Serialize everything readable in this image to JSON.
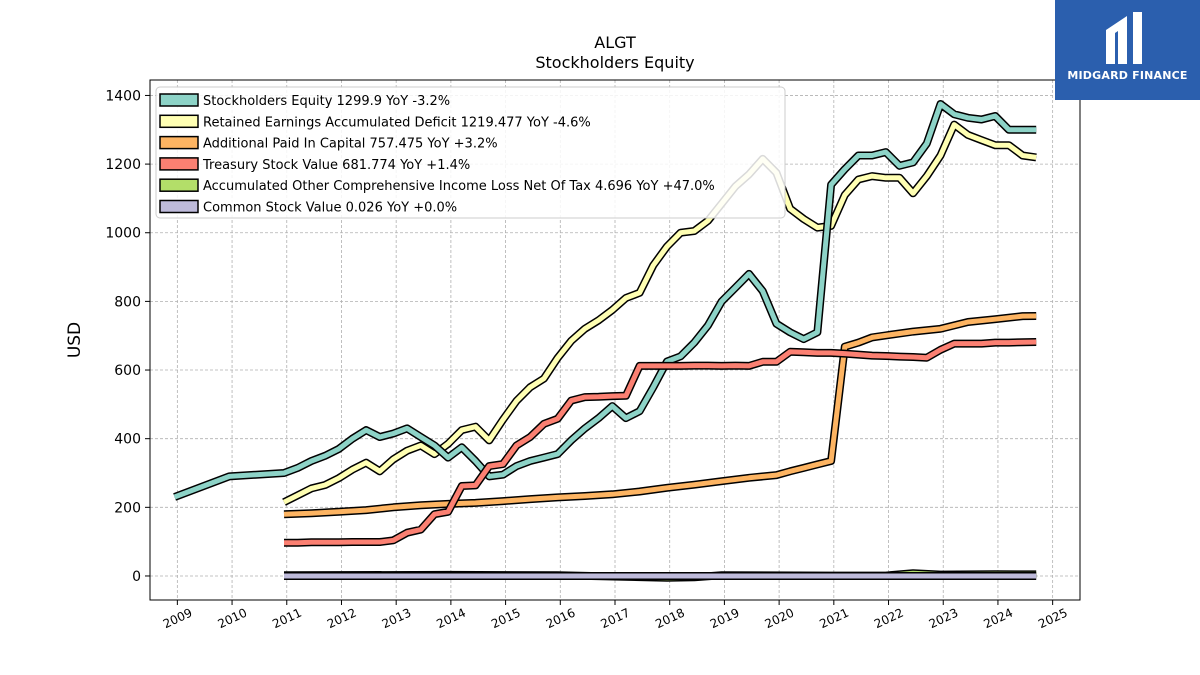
{
  "chart_data": {
    "type": "line",
    "title": "ALGT",
    "subtitle": "Stockholders  Equity",
    "ylabel": "USD",
    "xlabel": "",
    "xlim": [
      2008.5,
      2025.5
    ],
    "ylim": [
      -70,
      1445
    ],
    "x_ticks": [
      "2009",
      "2010",
      "2011",
      "2012",
      "2013",
      "2014",
      "2015",
      "2016",
      "2017",
      "2018",
      "2019",
      "2020",
      "2021",
      "2022",
      "2023",
      "2024",
      "2025"
    ],
    "y_ticks": [
      0,
      200,
      400,
      600,
      800,
      1000,
      1200,
      1400
    ],
    "grid": true,
    "legend_position": "top-left",
    "series": [
      {
        "name": "Stockholders Equity  1299.9 YoY -3.2%",
        "color": "#8dd3c7",
        "x": [
          2008.95,
          2009.95,
          2010.95,
          2011.2,
          2011.45,
          2011.7,
          2011.95,
          2012.2,
          2012.45,
          2012.7,
          2012.95,
          2013.2,
          2013.45,
          2013.7,
          2013.95,
          2014.2,
          2014.45,
          2014.7,
          2014.95,
          2015.2,
          2015.45,
          2015.7,
          2015.95,
          2016.2,
          2016.45,
          2016.7,
          2016.95,
          2017.2,
          2017.45,
          2017.7,
          2017.95,
          2018.2,
          2018.45,
          2018.7,
          2018.95,
          2019.2,
          2019.45,
          2019.7,
          2019.95,
          2020.2,
          2020.45,
          2020.7,
          2020.95,
          2021.2,
          2021.45,
          2021.7,
          2021.95,
          2022.2,
          2022.45,
          2022.7,
          2022.95,
          2023.2,
          2023.45,
          2023.7,
          2023.95,
          2024.2,
          2024.45,
          2024.7
        ],
        "values": [
          230,
          290,
          300,
          315,
          335,
          350,
          370,
          400,
          425,
          405,
          415,
          430,
          405,
          380,
          345,
          375,
          335,
          290,
          295,
          320,
          335,
          345,
          355,
          395,
          430,
          460,
          495,
          460,
          480,
          550,
          625,
          640,
          680,
          730,
          800,
          840,
          880,
          830,
          735,
          710,
          690,
          710,
          1140,
          1185,
          1225,
          1225,
          1235,
          1195,
          1205,
          1260,
          1375,
          1345,
          1335,
          1330,
          1340,
          1300,
          1299.9,
          1299.9
        ]
      },
      {
        "name": "Retained Earnings Accumulated Deficit  1219.477 YoY -4.6%",
        "color": "#ffffb3",
        "x": [
          2010.95,
          2011.2,
          2011.45,
          2011.7,
          2011.95,
          2012.2,
          2012.45,
          2012.7,
          2012.95,
          2013.2,
          2013.45,
          2013.7,
          2013.95,
          2014.2,
          2014.45,
          2014.7,
          2014.95,
          2015.2,
          2015.45,
          2015.7,
          2015.95,
          2016.2,
          2016.45,
          2016.7,
          2016.95,
          2017.2,
          2017.45,
          2017.7,
          2017.95,
          2018.2,
          2018.45,
          2018.7,
          2018.95,
          2019.2,
          2019.45,
          2019.7,
          2019.95,
          2020.2,
          2020.45,
          2020.7,
          2020.95,
          2021.2,
          2021.45,
          2021.7,
          2021.95,
          2022.2,
          2022.45,
          2022.7,
          2022.95,
          2023.2,
          2023.45,
          2023.7,
          2023.95,
          2024.2,
          2024.45,
          2024.7
        ],
        "values": [
          215,
          235,
          255,
          265,
          285,
          310,
          330,
          305,
          340,
          365,
          380,
          355,
          385,
          425,
          435,
          395,
          455,
          510,
          550,
          575,
          635,
          685,
          720,
          745,
          775,
          810,
          825,
          905,
          960,
          1000,
          1005,
          1035,
          1085,
          1135,
          1170,
          1215,
          1175,
          1070,
          1040,
          1015,
          1020,
          1110,
          1155,
          1165,
          1160,
          1160,
          1115,
          1165,
          1225,
          1315,
          1285,
          1270,
          1255,
          1255,
          1225,
          1219.477
        ]
      },
      {
        "name": "Additional Paid In Capital  757.475 YoY +3.2%",
        "color": "#fdb462",
        "x": [
          2010.95,
          2011.45,
          2011.95,
          2012.45,
          2012.95,
          2013.45,
          2013.95,
          2014.45,
          2014.95,
          2015.45,
          2015.95,
          2016.45,
          2016.95,
          2017.45,
          2017.95,
          2018.45,
          2018.95,
          2019.45,
          2019.95,
          2020.2,
          2020.45,
          2020.7,
          2020.95,
          2021.2,
          2021.45,
          2021.7,
          2021.95,
          2022.45,
          2022.95,
          2023.2,
          2023.45,
          2023.95,
          2024.45,
          2024.7
        ],
        "values": [
          180,
          183,
          187,
          192,
          200,
          206,
          210,
          213,
          218,
          224,
          229,
          233,
          238,
          246,
          257,
          266,
          276,
          286,
          294,
          305,
          315,
          325,
          335,
          668,
          680,
          695,
          701,
          712,
          720,
          730,
          740,
          748,
          757,
          757.475
        ]
      },
      {
        "name": "Treasury Stock Value  681.774 YoY +1.4%",
        "color": "#fb8072",
        "x": [
          2010.95,
          2011.2,
          2011.45,
          2011.7,
          2011.95,
          2012.2,
          2012.45,
          2012.7,
          2012.95,
          2013.2,
          2013.45,
          2013.7,
          2013.95,
          2014.2,
          2014.45,
          2014.7,
          2014.95,
          2015.2,
          2015.45,
          2015.7,
          2015.95,
          2016.2,
          2016.45,
          2016.7,
          2016.95,
          2017.2,
          2017.45,
          2017.7,
          2017.95,
          2018.2,
          2018.45,
          2018.7,
          2018.95,
          2019.2,
          2019.45,
          2019.7,
          2019.95,
          2020.2,
          2020.45,
          2020.7,
          2020.95,
          2021.2,
          2021.45,
          2021.7,
          2021.95,
          2022.2,
          2022.45,
          2022.7,
          2022.95,
          2023.2,
          2023.45,
          2023.7,
          2023.95,
          2024.2,
          2024.45,
          2024.7
        ],
        "values": [
          97,
          97,
          98,
          98,
          98,
          99,
          99,
          99,
          104,
          126,
          135,
          180,
          187,
          262,
          264,
          320,
          326,
          380,
          405,
          443,
          458,
          511,
          521,
          522,
          524,
          525,
          612,
          612,
          612,
          612,
          613,
          613,
          612,
          613,
          612,
          624,
          624,
          653,
          652,
          650,
          650,
          648,
          645,
          642,
          641,
          639,
          638,
          636,
          659,
          677,
          677,
          677,
          680,
          680,
          681,
          681.774
        ]
      },
      {
        "name": "Accumulated Other Comprehensive Income Loss Net Of Tax  4.696 YoY +47.0%",
        "color": "#b3de69",
        "x": [
          2010.95,
          2013.95,
          2015.95,
          2017.95,
          2018.45,
          2018.95,
          2020.95,
          2021.95,
          2022.45,
          2022.95,
          2023.95,
          2024.7
        ],
        "values": [
          2,
          3,
          2,
          -5,
          -4,
          2,
          1,
          1,
          8,
          4,
          5,
          4.696
        ]
      },
      {
        "name": "Common Stock Value  0.026 YoY +0.0%",
        "color": "#bebada",
        "x": [
          2010.95,
          2024.7
        ],
        "values": [
          0.026,
          0.026
        ]
      }
    ]
  },
  "logo": {
    "text": "MIDGARD FINANCE"
  }
}
